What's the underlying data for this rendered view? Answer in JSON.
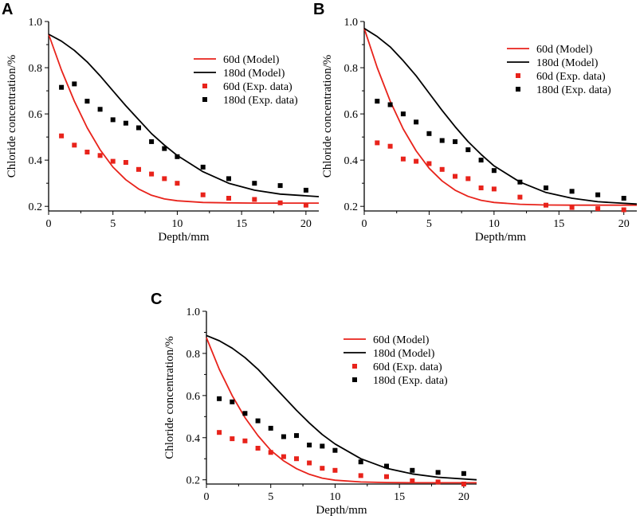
{
  "figure": {
    "panels": [
      "A",
      "B",
      "C"
    ]
  },
  "chart_data": [
    {
      "panel": "A",
      "type": "line+scatter",
      "xlabel": "Depth/mm",
      "ylabel": "Chloride concentration/%",
      "xlim": [
        0,
        21
      ],
      "ylim": [
        0.18,
        1.0
      ],
      "xticks": [
        0,
        5,
        10,
        15,
        20
      ],
      "yticks": [
        0.2,
        0.4,
        0.6,
        0.8,
        1.0
      ],
      "yticklabels": [
        "0.2",
        "0.4",
        "0.6",
        "0.8",
        "1.0"
      ],
      "legend_position": "top-right",
      "series": [
        {
          "name": "60d (Model)",
          "kind": "line",
          "color": "#e8231b",
          "x": [
            0,
            1,
            2,
            3,
            4,
            5,
            6,
            7,
            8,
            9,
            10,
            12,
            14,
            16,
            18,
            21
          ],
          "y": [
            0.945,
            0.79,
            0.655,
            0.54,
            0.445,
            0.37,
            0.315,
            0.275,
            0.248,
            0.232,
            0.224,
            0.217,
            0.215,
            0.214,
            0.214,
            0.214
          ]
        },
        {
          "name": "180d (Model)",
          "kind": "line",
          "color": "#000000",
          "x": [
            0,
            1,
            2,
            3,
            4,
            5,
            6,
            7,
            8,
            9,
            10,
            12,
            14,
            16,
            18,
            21
          ],
          "y": [
            0.945,
            0.915,
            0.875,
            0.825,
            0.765,
            0.7,
            0.635,
            0.575,
            0.515,
            0.465,
            0.42,
            0.35,
            0.3,
            0.27,
            0.253,
            0.242
          ]
        },
        {
          "name": "60d (Exp. data)",
          "kind": "scatter",
          "color": "#e8231b",
          "x": [
            1,
            2,
            3,
            4,
            5,
            6,
            7,
            8,
            9,
            10,
            12,
            14,
            16,
            18,
            20
          ],
          "y": [
            0.505,
            0.465,
            0.435,
            0.42,
            0.395,
            0.39,
            0.36,
            0.34,
            0.32,
            0.3,
            0.25,
            0.235,
            0.23,
            0.215,
            0.205
          ]
        },
        {
          "name": "180d (Exp. data)",
          "kind": "scatter",
          "color": "#000000",
          "x": [
            1,
            2,
            3,
            4,
            5,
            6,
            7,
            8,
            9,
            10,
            12,
            14,
            16,
            18,
            20
          ],
          "y": [
            0.715,
            0.73,
            0.655,
            0.62,
            0.575,
            0.56,
            0.54,
            0.48,
            0.45,
            0.415,
            0.37,
            0.32,
            0.3,
            0.29,
            0.27
          ]
        }
      ]
    },
    {
      "panel": "B",
      "type": "line+scatter",
      "xlabel": "Depth/mm",
      "ylabel": "Chloride concentration/%",
      "xlim": [
        0,
        21
      ],
      "ylim": [
        0.18,
        1.0
      ],
      "xticks": [
        0,
        5,
        10,
        15,
        20
      ],
      "yticks": [
        0.2,
        0.4,
        0.6,
        0.8,
        1.0
      ],
      "yticklabels": [
        "0.2",
        "0.4",
        "0.6",
        "0.8",
        "1.0"
      ],
      "legend_position": "top-right",
      "series": [
        {
          "name": "60d (Model)",
          "kind": "line",
          "color": "#e8231b",
          "x": [
            0,
            1,
            2,
            3,
            4,
            5,
            6,
            7,
            8,
            9,
            10,
            12,
            14,
            16,
            18,
            21
          ],
          "y": [
            0.97,
            0.8,
            0.655,
            0.535,
            0.44,
            0.365,
            0.31,
            0.27,
            0.243,
            0.226,
            0.217,
            0.209,
            0.206,
            0.205,
            0.205,
            0.205
          ]
        },
        {
          "name": "180d (Model)",
          "kind": "line",
          "color": "#000000",
          "x": [
            0,
            1,
            2,
            3,
            4,
            5,
            6,
            7,
            8,
            9,
            10,
            12,
            14,
            16,
            18,
            21
          ],
          "y": [
            0.97,
            0.935,
            0.89,
            0.83,
            0.765,
            0.69,
            0.615,
            0.545,
            0.48,
            0.425,
            0.375,
            0.305,
            0.26,
            0.235,
            0.22,
            0.21
          ]
        },
        {
          "name": "60d (Exp. data)",
          "kind": "scatter",
          "color": "#e8231b",
          "x": [
            1,
            2,
            3,
            4,
            5,
            6,
            7,
            8,
            9,
            10,
            12,
            14,
            16,
            18,
            20
          ],
          "y": [
            0.475,
            0.46,
            0.405,
            0.395,
            0.385,
            0.36,
            0.33,
            0.32,
            0.28,
            0.275,
            0.24,
            0.205,
            0.195,
            0.19,
            0.185
          ]
        },
        {
          "name": "180d  (Exp. data)",
          "kind": "scatter",
          "color": "#000000",
          "x": [
            1,
            2,
            3,
            4,
            5,
            6,
            7,
            8,
            9,
            10,
            12,
            14,
            16,
            18,
            20
          ],
          "y": [
            0.655,
            0.64,
            0.6,
            0.565,
            0.515,
            0.485,
            0.48,
            0.445,
            0.4,
            0.355,
            0.305,
            0.28,
            0.265,
            0.25,
            0.235
          ]
        }
      ]
    },
    {
      "panel": "C",
      "type": "line+scatter",
      "xlabel": "Depth/mm",
      "ylabel": "Chloride concentration/%",
      "xlim": [
        0,
        21
      ],
      "ylim": [
        0.18,
        1.0
      ],
      "xticks": [
        0,
        5,
        10,
        15,
        20
      ],
      "yticks": [
        0.2,
        0.4,
        0.6,
        0.8,
        1.0
      ],
      "yticklabels": [
        "0.2",
        "0.4",
        "0.6",
        "0.8",
        "1.0"
      ],
      "legend_position": "top-right",
      "series": [
        {
          "name": "60d (Model)",
          "kind": "line",
          "color": "#e8231b",
          "x": [
            0,
            1,
            2,
            3,
            4,
            5,
            6,
            7,
            8,
            9,
            10,
            12,
            14,
            16,
            18,
            21
          ],
          "y": [
            0.875,
            0.725,
            0.6,
            0.495,
            0.41,
            0.34,
            0.29,
            0.253,
            0.226,
            0.208,
            0.198,
            0.19,
            0.187,
            0.186,
            0.186,
            0.186
          ]
        },
        {
          "name": "180d (Model)",
          "kind": "line",
          "color": "#000000",
          "x": [
            0,
            1,
            2,
            3,
            4,
            5,
            6,
            7,
            8,
            9,
            10,
            12,
            14,
            16,
            18,
            21
          ],
          "y": [
            0.885,
            0.86,
            0.825,
            0.78,
            0.725,
            0.66,
            0.595,
            0.53,
            0.47,
            0.415,
            0.37,
            0.3,
            0.255,
            0.228,
            0.212,
            0.2
          ]
        },
        {
          "name": "60d (Exp. data)",
          "kind": "scatter",
          "color": "#e8231b",
          "x": [
            1,
            2,
            3,
            4,
            5,
            6,
            7,
            8,
            9,
            10,
            12,
            14,
            16,
            18,
            20
          ],
          "y": [
            0.425,
            0.395,
            0.385,
            0.35,
            0.33,
            0.31,
            0.3,
            0.28,
            0.255,
            0.245,
            0.22,
            0.215,
            0.195,
            0.19,
            0.18
          ]
        },
        {
          "name": "180d  (Exp. data)",
          "kind": "scatter",
          "color": "#000000",
          "x": [
            1,
            2,
            3,
            4,
            5,
            6,
            7,
            8,
            9,
            10,
            12,
            14,
            16,
            18,
            20
          ],
          "y": [
            0.585,
            0.57,
            0.515,
            0.48,
            0.445,
            0.405,
            0.41,
            0.365,
            0.36,
            0.34,
            0.285,
            0.265,
            0.245,
            0.235,
            0.23
          ]
        }
      ]
    }
  ]
}
